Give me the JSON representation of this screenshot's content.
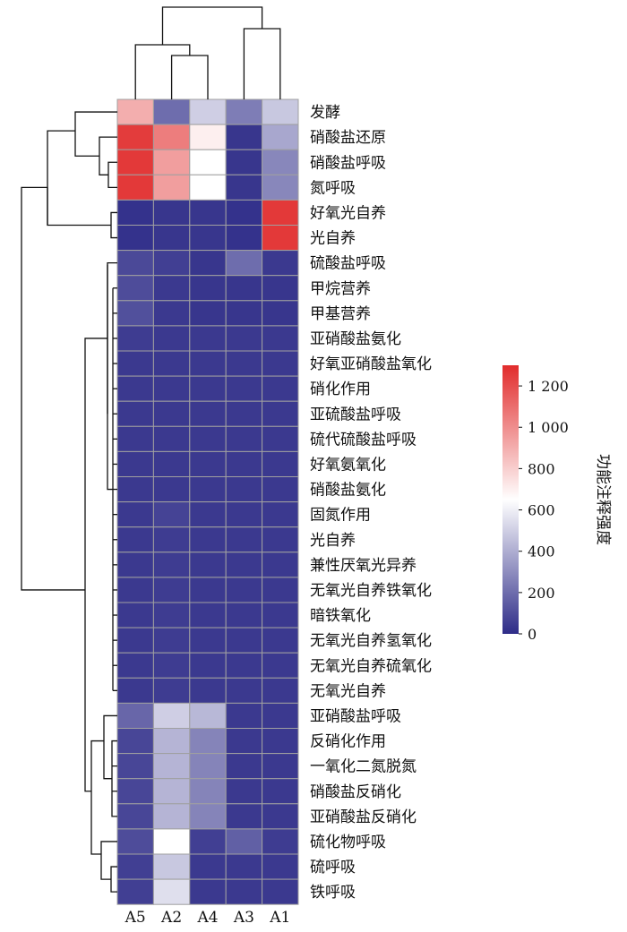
{
  "chart_data": {
    "type": "heatmap",
    "columns": [
      "A5",
      "A2",
      "A4",
      "A3",
      "A1"
    ],
    "rows": [
      "发酵",
      "硝酸盐还原",
      "硝酸盐呼吸",
      "氮呼吸",
      "好氧光自养",
      "光自养",
      "硫酸盐呼吸",
      "甲烷营养",
      "甲基营养",
      "亚硝酸盐氨化",
      "好氧亚硝酸盐氧化",
      "硝化作用",
      "亚硫酸盐呼吸",
      "硫代硫酸盐呼吸",
      "好氧氨氧化",
      "硝酸盐氨化",
      "固氮作用",
      "光自养",
      "兼性厌氧光异养",
      "无氧光自养铁氧化",
      "暗铁氧化",
      "无氧光自养氢氧化",
      "无氧光自养硫氧化",
      "无氧光自养",
      "亚硝酸盐呼吸",
      "反硝化作用",
      "一氧化二氮脱氮",
      "硝酸盐反硝化",
      "亚硝酸盐反硝化",
      "硫化物呼吸",
      "硫呼吸",
      "铁呼吸"
    ],
    "values": [
      [
        900,
        200,
        500,
        250,
        480
      ],
      [
        1250,
        1050,
        700,
        30,
        380
      ],
      [
        1260,
        950,
        650,
        30,
        280
      ],
      [
        1260,
        950,
        650,
        30,
        280
      ],
      [
        20,
        30,
        30,
        20,
        1260
      ],
      [
        20,
        30,
        30,
        20,
        1260
      ],
      [
        90,
        60,
        30,
        200,
        40
      ],
      [
        100,
        40,
        30,
        30,
        30
      ],
      [
        110,
        40,
        30,
        30,
        30
      ],
      [
        50,
        40,
        40,
        40,
        40
      ],
      [
        40,
        40,
        40,
        40,
        40
      ],
      [
        40,
        40,
        40,
        40,
        40
      ],
      [
        40,
        40,
        40,
        40,
        40
      ],
      [
        40,
        40,
        40,
        40,
        40
      ],
      [
        40,
        40,
        40,
        40,
        40
      ],
      [
        40,
        40,
        40,
        40,
        40
      ],
      [
        40,
        70,
        40,
        40,
        40
      ],
      [
        40,
        50,
        40,
        40,
        40
      ],
      [
        40,
        50,
        40,
        40,
        40
      ],
      [
        40,
        50,
        40,
        40,
        40
      ],
      [
        40,
        50,
        40,
        40,
        40
      ],
      [
        40,
        50,
        40,
        40,
        40
      ],
      [
        40,
        50,
        40,
        40,
        40
      ],
      [
        40,
        50,
        40,
        40,
        40
      ],
      [
        180,
        500,
        430,
        40,
        40
      ],
      [
        80,
        420,
        270,
        40,
        40
      ],
      [
        80,
        420,
        270,
        40,
        40
      ],
      [
        80,
        420,
        270,
        40,
        40
      ],
      [
        80,
        420,
        270,
        40,
        40
      ],
      [
        100,
        650,
        60,
        160,
        50
      ],
      [
        60,
        480,
        40,
        40,
        40
      ],
      [
        60,
        550,
        40,
        40,
        40
      ]
    ],
    "colorbar": {
      "title": "功能注释强度",
      "min": 0,
      "max": 1300,
      "ticks": [
        0,
        200,
        400,
        600,
        800,
        1000,
        1200
      ],
      "tick_labels": [
        "0",
        "200",
        "400",
        "600",
        "800",
        "1 000",
        "1 200"
      ],
      "colors": {
        "low": "#2e2c88",
        "mid": "#ffffff",
        "high": "#e12c2c"
      },
      "mid_value": 650
    },
    "cell_border_color": "#a0a0a0",
    "dendrogram_color": "#111111"
  }
}
